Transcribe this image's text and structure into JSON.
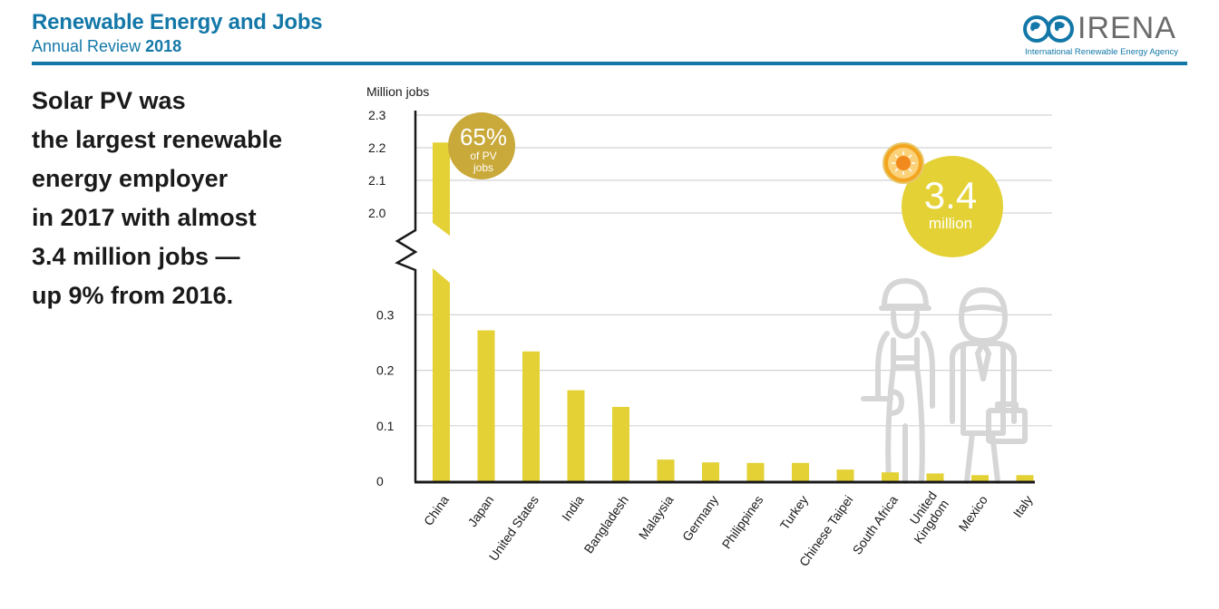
{
  "header": {
    "title": "Renewable Energy and Jobs",
    "subtitle_prefix": "Annual Review",
    "subtitle_year": "2018"
  },
  "logo": {
    "wordmark": "IRENA",
    "tagline": "International Renewable Energy Agency",
    "icon": "globe-infinity-icon"
  },
  "lead_text": [
    "Solar PV was",
    "the largest renewable",
    "energy employer",
    "in 2017 with almost",
    "3.4 million jobs —",
    "up 9% from 2016."
  ],
  "callouts": {
    "china_share": {
      "value": "65%",
      "line1": "of PV",
      "line2": "jobs"
    },
    "total": {
      "value": "3.4",
      "unit": "million",
      "icon": "sun-icon"
    }
  },
  "colors": {
    "brand": "#1378a8",
    "bar": "#e3d135",
    "china_badge": "#c9a93a",
    "total_badge": "#e3d135",
    "sun": "#f39a1e",
    "illustration": "#d9d9d9"
  },
  "chart_data": {
    "type": "bar",
    "title": "",
    "xlabel": "",
    "ylabel": "Million jobs",
    "axis_break": {
      "from": 0.33,
      "to": 1.97
    },
    "ylim_lower": [
      0,
      0.33
    ],
    "ylim_upper": [
      1.97,
      2.3
    ],
    "yticks_lower": [
      "0",
      "0.1",
      "0.2",
      "0.3"
    ],
    "yticks_upper": [
      "2.0",
      "2.1",
      "2.2",
      "2.3"
    ],
    "grid": true,
    "categories": [
      "China",
      "Japan",
      "United States",
      "India",
      "Bangladesh",
      "Malaysia",
      "Germany",
      "Philippines",
      "Turkey",
      "Chinese Taipei",
      "South Africa",
      "United Kingdom",
      "Mexico",
      "Italy"
    ],
    "category_labels": [
      [
        "China"
      ],
      [
        "Japan"
      ],
      [
        "United States"
      ],
      [
        "India"
      ],
      [
        "Bangladesh"
      ],
      [
        "Malaysia"
      ],
      [
        "Germany"
      ],
      [
        "Philippines"
      ],
      [
        "Turkey"
      ],
      [
        "Chinese Taipei"
      ],
      [
        "South Africa"
      ],
      [
        "United",
        "Kingdom"
      ],
      [
        "Mexico"
      ],
      [
        "Italy"
      ]
    ],
    "values": [
      2.216,
      0.272,
      0.234,
      0.164,
      0.134,
      0.039,
      0.034,
      0.033,
      0.033,
      0.021,
      0.016,
      0.014,
      0.011,
      0.011
    ]
  }
}
